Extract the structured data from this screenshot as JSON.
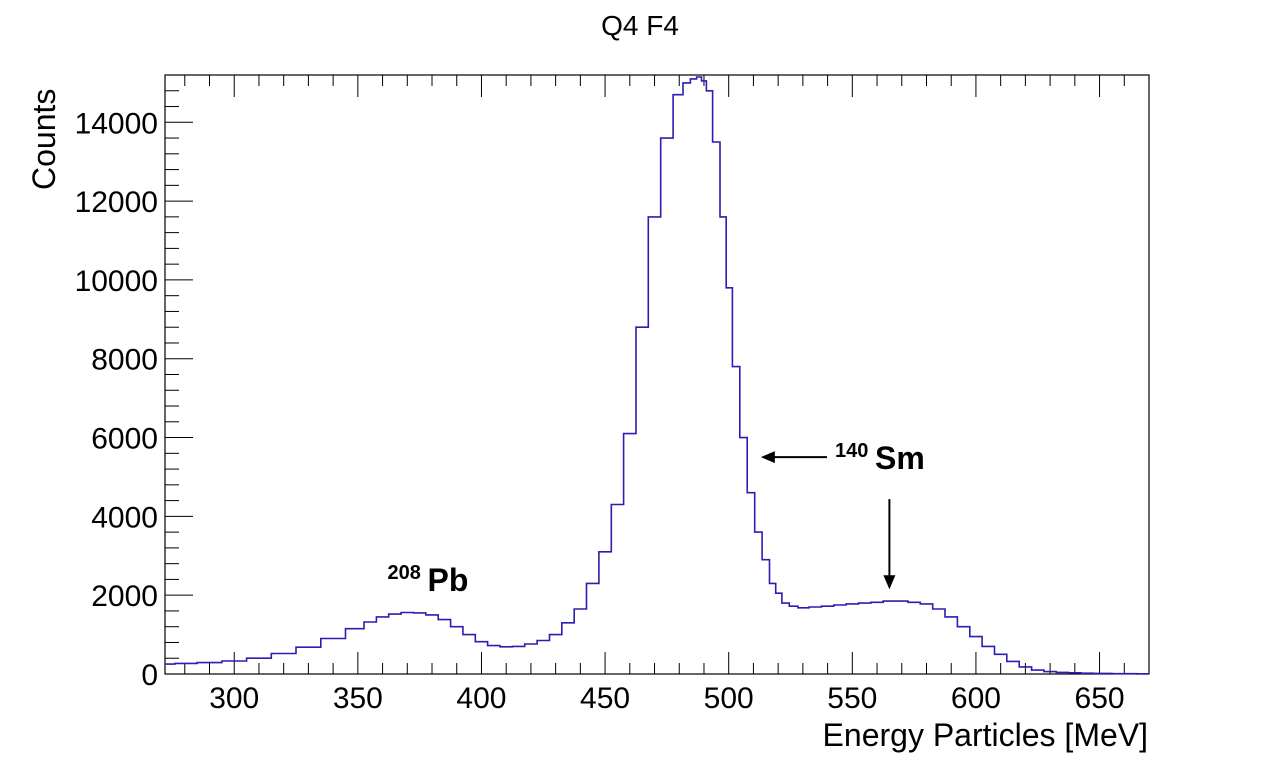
{
  "chart_data": {
    "type": "line",
    "title": "Q4 F4",
    "xlabel": "Energy Particles [MeV]",
    "ylabel": "Counts",
    "xlim": [
      272,
      670
    ],
    "ylim": [
      0,
      15200
    ],
    "x_ticks": [
      300,
      350,
      400,
      450,
      500,
      550,
      600,
      650
    ],
    "y_ticks": [
      0,
      2000,
      4000,
      6000,
      8000,
      10000,
      12000,
      14000
    ],
    "grid": false,
    "line_color": "#2a1fb0",
    "series": [
      {
        "x": [
          272,
          280,
          290,
          300,
          310,
          320,
          330,
          340,
          350,
          355,
          360,
          365,
          370,
          375,
          380,
          385,
          390,
          395,
          400,
          405,
          410,
          415,
          420,
          425,
          430,
          435,
          440,
          445,
          450,
          455,
          460,
          465,
          470,
          475,
          480,
          483,
          486,
          488,
          490,
          492,
          495,
          498,
          500,
          503,
          506,
          509,
          512,
          515,
          518,
          520,
          523,
          526,
          530,
          535,
          540,
          545,
          550,
          555,
          560,
          565,
          570,
          575,
          580,
          585,
          590,
          595,
          600,
          605,
          610,
          615,
          620,
          625,
          630,
          635,
          640,
          645,
          650,
          660,
          670
        ],
        "y": [
          250,
          270,
          290,
          330,
          400,
          520,
          680,
          900,
          1150,
          1320,
          1450,
          1520,
          1560,
          1550,
          1500,
          1380,
          1200,
          1000,
          820,
          720,
          690,
          700,
          760,
          850,
          1000,
          1300,
          1650,
          2300,
          3100,
          4300,
          6100,
          8800,
          11600,
          13600,
          14700,
          15000,
          15100,
          15150,
          15050,
          14800,
          13500,
          11600,
          9800,
          7800,
          6000,
          4600,
          3600,
          2900,
          2300,
          2050,
          1800,
          1720,
          1680,
          1700,
          1720,
          1750,
          1780,
          1800,
          1820,
          1850,
          1850,
          1820,
          1780,
          1650,
          1450,
          1200,
          950,
          700,
          500,
          320,
          180,
          100,
          60,
          40,
          30,
          20,
          15,
          8,
          5
        ]
      }
    ],
    "annotations": [
      {
        "sup": "208",
        "label": "Pb",
        "x": 362,
        "y": 2100
      },
      {
        "sup": "140",
        "label": "Sm",
        "x": 543,
        "y": 5200,
        "arrow_left_to": [
          513,
          5400
        ],
        "arrow_down_to": [
          565,
          2150
        ]
      }
    ]
  }
}
